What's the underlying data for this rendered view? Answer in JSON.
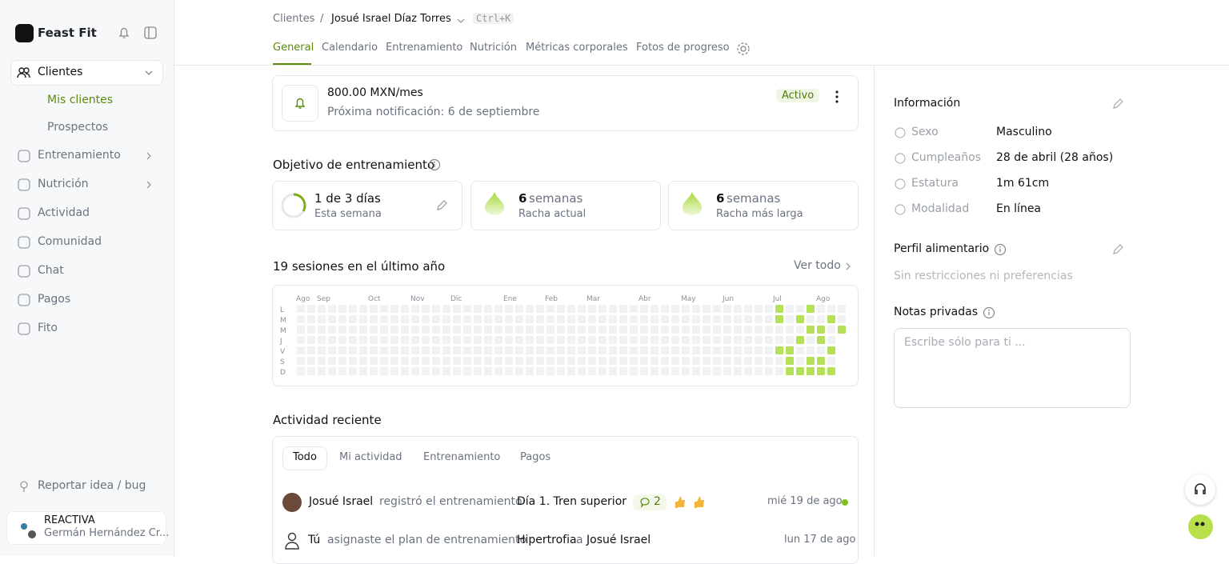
{
  "sidebar": {
    "brand": "Feast Fit",
    "clients": "Clientes",
    "client_links": [
      "Mis clientes",
      "Prospectos"
    ],
    "items": [
      "Entrenamiento",
      "Nutrición",
      "Actividad",
      "Comunidad",
      "Chat",
      "Pagos",
      "Fito"
    ],
    "report": "Reportar idea / bug",
    "org": "REACTIVA",
    "user": "Germán Hernández Cr..."
  },
  "header": {
    "breadcrumb": [
      "Clientes",
      "/",
      "Josué Israel Díaz Torres"
    ],
    "shortcut": "Ctrl+K",
    "tabs": [
      "General",
      "Calendario",
      "Entrenamiento",
      "Nutrición",
      "Métricas corporales",
      "Fotos de progreso"
    ]
  },
  "subscription": {
    "price": "800.00 MXN/mes",
    "next": "Próxima notificación: 6 de septiembre",
    "status": "Activo"
  },
  "goal": {
    "title": "Objetivo de entrenamiento",
    "week": {
      "main": "1 de 3 días",
      "sub": "Esta semana"
    },
    "streaks": [
      {
        "number": 6,
        "unit": "semanas",
        "sub": "Racha actual"
      },
      {
        "number": 6,
        "unit": "semanas",
        "sub": "Racha más larga"
      }
    ]
  },
  "sessions": {
    "title": "19 sesiones en el último año",
    "link": "Ver todo",
    "months": [
      "Ago",
      "Sep",
      "Oct",
      "Nov",
      "Dic",
      "Ene",
      "Feb",
      "Mar",
      "Abr",
      "May",
      "Jun",
      "Jul",
      "Ago"
    ],
    "days": [
      "L",
      "M",
      "M",
      "J",
      "V",
      "S",
      "D"
    ]
  },
  "activity": {
    "title": "Actividad reciente",
    "filters": [
      "Todo",
      "Mi actividad",
      "Entrenamiento",
      "Pagos"
    ],
    "items": [
      {
        "actor": "Josué Israel",
        "action": "registró el entrenamiento",
        "object": "Día 1. Tren superior",
        "comments": 2,
        "date": "mié 19 de ago"
      },
      {
        "actor": "Tú",
        "action": "asignaste el plan de entrenamiento",
        "object": "Hipertrofia",
        "connector": "a",
        "target": "Josué Israel",
        "date": "lun 17 de ago"
      }
    ]
  },
  "info": {
    "title": "Información",
    "rows": [
      [
        "Sexo",
        "Masculino"
      ],
      [
        "Cumpleaños",
        "28 de abril (28 años)"
      ],
      [
        "Estatura",
        "1m 61cm"
      ],
      [
        "Modalidad",
        "En línea"
      ]
    ],
    "diet_title": "Perfil alimentario",
    "diet_value": "Sin restricciones ni preferencias",
    "notes_title": "Notas privadas",
    "notes_placeholder": "Escribe sólo para ti ..."
  }
}
